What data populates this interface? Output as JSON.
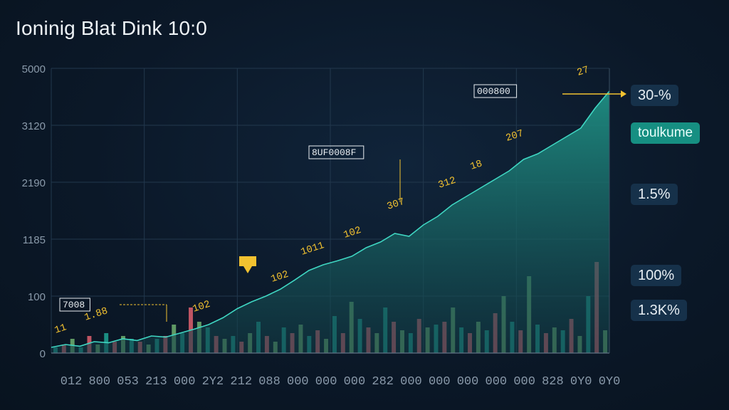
{
  "title": "Ioninig Blat Dink 10:0",
  "colors": {
    "area_line": "#3fd6c2",
    "area_top": "#1f8f83",
    "area_bottom": "#123b45",
    "bar_teal": "#1fa394",
    "bar_red": "#e0606e",
    "bar_green": "#6fb070",
    "annotation": "#f2c230",
    "gridline": "#22384d",
    "axis_text": "#8a9aaa"
  },
  "chart_data": {
    "type": "area",
    "title": "Ioninig Blat Dink 10:0",
    "xlabel": "",
    "ylabel": "",
    "grid": true,
    "y_ticks": [
      "0",
      "100",
      "1185",
      "2190",
      "3120",
      "5000"
    ],
    "x_ticks": [
      "012",
      "800",
      "053",
      "213",
      "000",
      "2Y2",
      "212",
      "088",
      "000",
      "000",
      "000",
      "282",
      "000",
      "000",
      "000",
      "000",
      "000",
      "828",
      "0Y0",
      "0Y0"
    ],
    "series": [
      {
        "type": "area",
        "values": [
          0.1,
          0.15,
          0.12,
          0.2,
          0.18,
          0.25,
          0.22,
          0.3,
          0.28,
          0.35,
          0.42,
          0.5,
          0.62,
          0.78,
          0.9,
          1.0,
          1.12,
          1.28,
          1.45,
          1.55,
          1.62,
          1.7,
          1.85,
          1.95,
          2.1,
          2.05,
          2.25,
          2.4,
          2.6,
          2.75,
          2.9,
          3.05,
          3.2,
          3.4,
          3.5,
          3.65,
          3.8,
          3.95,
          4.3,
          4.6
        ]
      },
      {
        "type": "bar",
        "values": [
          0.1,
          0.15,
          0.25,
          0.1,
          0.3,
          0.15,
          0.35,
          0.2,
          0.3,
          0.25,
          0.2,
          0.15,
          0.25,
          0.3,
          0.5,
          0.35,
          0.8,
          0.55,
          0.45,
          0.3,
          0.25,
          0.3,
          0.2,
          0.35,
          0.55,
          0.3,
          0.2,
          0.45,
          0.35,
          0.5,
          0.3,
          0.4,
          0.25,
          0.65,
          0.35,
          0.9,
          0.6,
          0.45,
          0.35,
          0.8,
          0.55,
          0.4,
          0.35,
          0.6,
          0.45,
          0.5,
          0.55,
          0.8,
          0.45,
          0.35,
          0.55,
          0.4,
          0.7,
          1.0,
          0.55,
          0.4,
          1.35,
          0.5,
          0.35,
          0.45,
          0.4,
          0.6,
          0.3,
          1.0,
          1.6,
          0.4
        ]
      }
    ],
    "annotations": [
      "000800",
      "8UF0008F",
      "7008",
      "1.88",
      "11",
      "207",
      "312",
      "18",
      "307",
      "102",
      "1011",
      "102",
      "102",
      "27"
    ],
    "legend": [
      {
        "label": "30-%",
        "color": "#16314a"
      },
      {
        "label": "toulkume",
        "color": "#168f82"
      },
      {
        "label": "1.5%",
        "color": "#16314a"
      },
      {
        "label": "100%",
        "color": "#16314a"
      },
      {
        "label": "1.3K%",
        "color": "#16314a"
      }
    ],
    "legend_position": "right"
  }
}
